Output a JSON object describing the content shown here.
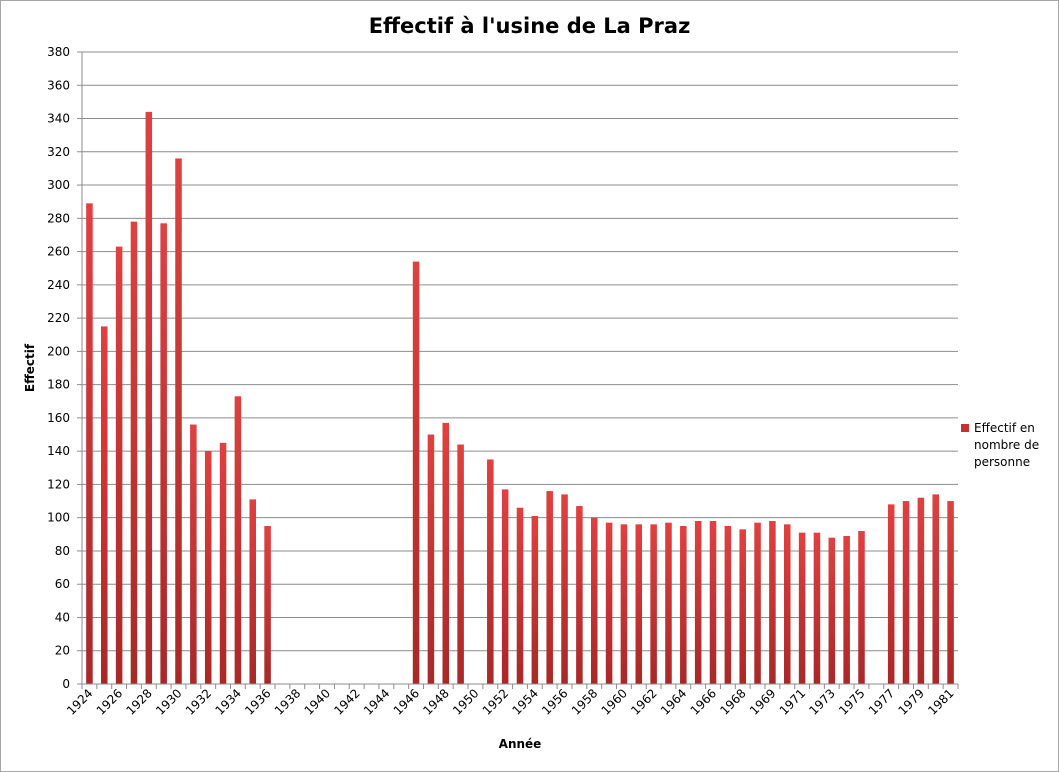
{
  "chart_data": {
    "type": "bar",
    "title": "Effectif à l'usine de La Praz",
    "xlabel": "Année",
    "ylabel": "Effectif",
    "ylim": [
      0,
      380
    ],
    "yticks": [
      "0",
      "20",
      "40",
      "60",
      "80",
      "100",
      "120",
      "140",
      "160",
      "180",
      "200",
      "220",
      "240",
      "260",
      "280",
      "300",
      "320",
      "340",
      "360",
      "380"
    ],
    "grid": true,
    "legend_position": "right",
    "series": [
      {
        "name": "Effectif en nombre de personne",
        "color": "#c83232",
        "values": [
          289,
          215,
          263,
          278,
          344,
          277,
          316,
          156,
          140,
          145,
          173,
          111,
          95,
          null,
          null,
          null,
          null,
          null,
          null,
          null,
          null,
          null,
          254,
          150,
          157,
          144,
          null,
          135,
          117,
          106,
          101,
          116,
          114,
          107,
          100,
          97,
          96,
          96,
          96,
          97,
          95,
          98,
          98,
          95,
          93,
          97,
          98,
          96,
          91,
          91,
          88,
          89,
          92,
          null,
          108,
          110,
          112,
          114,
          110
        ]
      }
    ],
    "categories": [
      "1924",
      "1925",
      "1926",
      "1927",
      "1928",
      "1929",
      "1930",
      "1931",
      "1932",
      "1933",
      "1934",
      "1935",
      "1936",
      "1937",
      "1938",
      "1939",
      "1940",
      "1941",
      "1942",
      "1943",
      "1944",
      "1945",
      "1946",
      "1947",
      "1948",
      "1949",
      "1950",
      "1951",
      "1952",
      "1953",
      "1954",
      "1955",
      "1956",
      "1957",
      "1958",
      "1959",
      "1960",
      "1961",
      "1962",
      "1963",
      "1964",
      "1965",
      "1966",
      "1967",
      "1968",
      "1968",
      "1969",
      "1970",
      "1971",
      "1972",
      "1973",
      "1974",
      "1975",
      "1976",
      "1977",
      "1978",
      "1979",
      "1980",
      "1981"
    ],
    "tick_labels": [
      "1924",
      "",
      "1926",
      "",
      "1928",
      "",
      "1930",
      "",
      "1932",
      "",
      "1934",
      "",
      "1936",
      "",
      "1938",
      "",
      "1940",
      "",
      "1942",
      "",
      "1944",
      "",
      "1946",
      "",
      "1948",
      "",
      "1950",
      "",
      "1952",
      "",
      "1954",
      "",
      "1956",
      "",
      "1958",
      "",
      "1960",
      "",
      "1962",
      "",
      "1964",
      "",
      "1966",
      "",
      "1968",
      "",
      "1969",
      "",
      "1971",
      "",
      "1973",
      "",
      "1975",
      "",
      "1977",
      "",
      "1979",
      "",
      "1981"
    ]
  }
}
